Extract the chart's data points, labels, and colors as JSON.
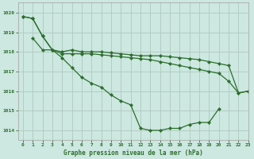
{
  "title": "Graphe pression niveau de la mer (hPa)",
  "bg_color": "#cce8e0",
  "grid_color": "#b0c8c0",
  "line_color": "#2d6e2d",
  "marker_color": "#2d6e2d",
  "xlim": [
    -0.5,
    23
  ],
  "ylim": [
    1013.5,
    1020.5
  ],
  "yticks": [
    1014,
    1015,
    1016,
    1017,
    1018,
    1019,
    1020
  ],
  "xticks": [
    0,
    1,
    2,
    3,
    4,
    5,
    6,
    7,
    8,
    9,
    10,
    11,
    12,
    13,
    14,
    15,
    16,
    17,
    18,
    19,
    20,
    21,
    22,
    23
  ],
  "series": [
    {
      "x": [
        0,
        1,
        2,
        3,
        4,
        5,
        6,
        7,
        8,
        9,
        10,
        11,
        12,
        13,
        14,
        15,
        16,
        17,
        18,
        19,
        20
      ],
      "y": [
        1019.8,
        1019.7,
        1018.8,
        1018.1,
        1017.7,
        1017.2,
        1016.7,
        1016.4,
        1016.2,
        1015.8,
        1015.5,
        1015.3,
        1014.1,
        1014.0,
        1014.0,
        1014.1,
        1014.1,
        1014.3,
        1014.4,
        1014.4,
        1015.1
      ]
    },
    {
      "x": [
        0,
        1,
        2,
        3,
        4,
        5,
        6,
        7,
        8,
        9,
        10,
        11,
        12,
        13,
        14,
        15,
        16,
        17,
        18,
        19,
        20,
        21,
        22,
        23
      ],
      "y": [
        1019.8,
        1019.7,
        1018.8,
        1018.1,
        1017.9,
        1017.9,
        1017.9,
        1017.9,
        1017.85,
        1017.8,
        1017.75,
        1017.7,
        1017.65,
        1017.6,
        1017.5,
        1017.4,
        1017.3,
        1017.2,
        1017.1,
        1017.0,
        1016.9,
        1016.5,
        1015.9,
        1016.0
      ]
    },
    {
      "x": [
        1,
        2,
        3,
        4,
        5,
        6,
        7,
        8,
        9,
        10,
        11,
        12,
        13,
        14,
        15,
        16,
        17,
        18,
        19,
        20,
        21,
        22,
        23
      ],
      "y": [
        1018.7,
        1018.1,
        1018.1,
        1018.0,
        1018.1,
        1018.0,
        1018.0,
        1018.0,
        1017.95,
        1017.9,
        1017.85,
        1017.8,
        1017.8,
        1017.8,
        1017.75,
        1017.7,
        1017.65,
        1017.6,
        1017.5,
        1017.4,
        1017.3,
        1015.9,
        1016.0
      ]
    }
  ]
}
